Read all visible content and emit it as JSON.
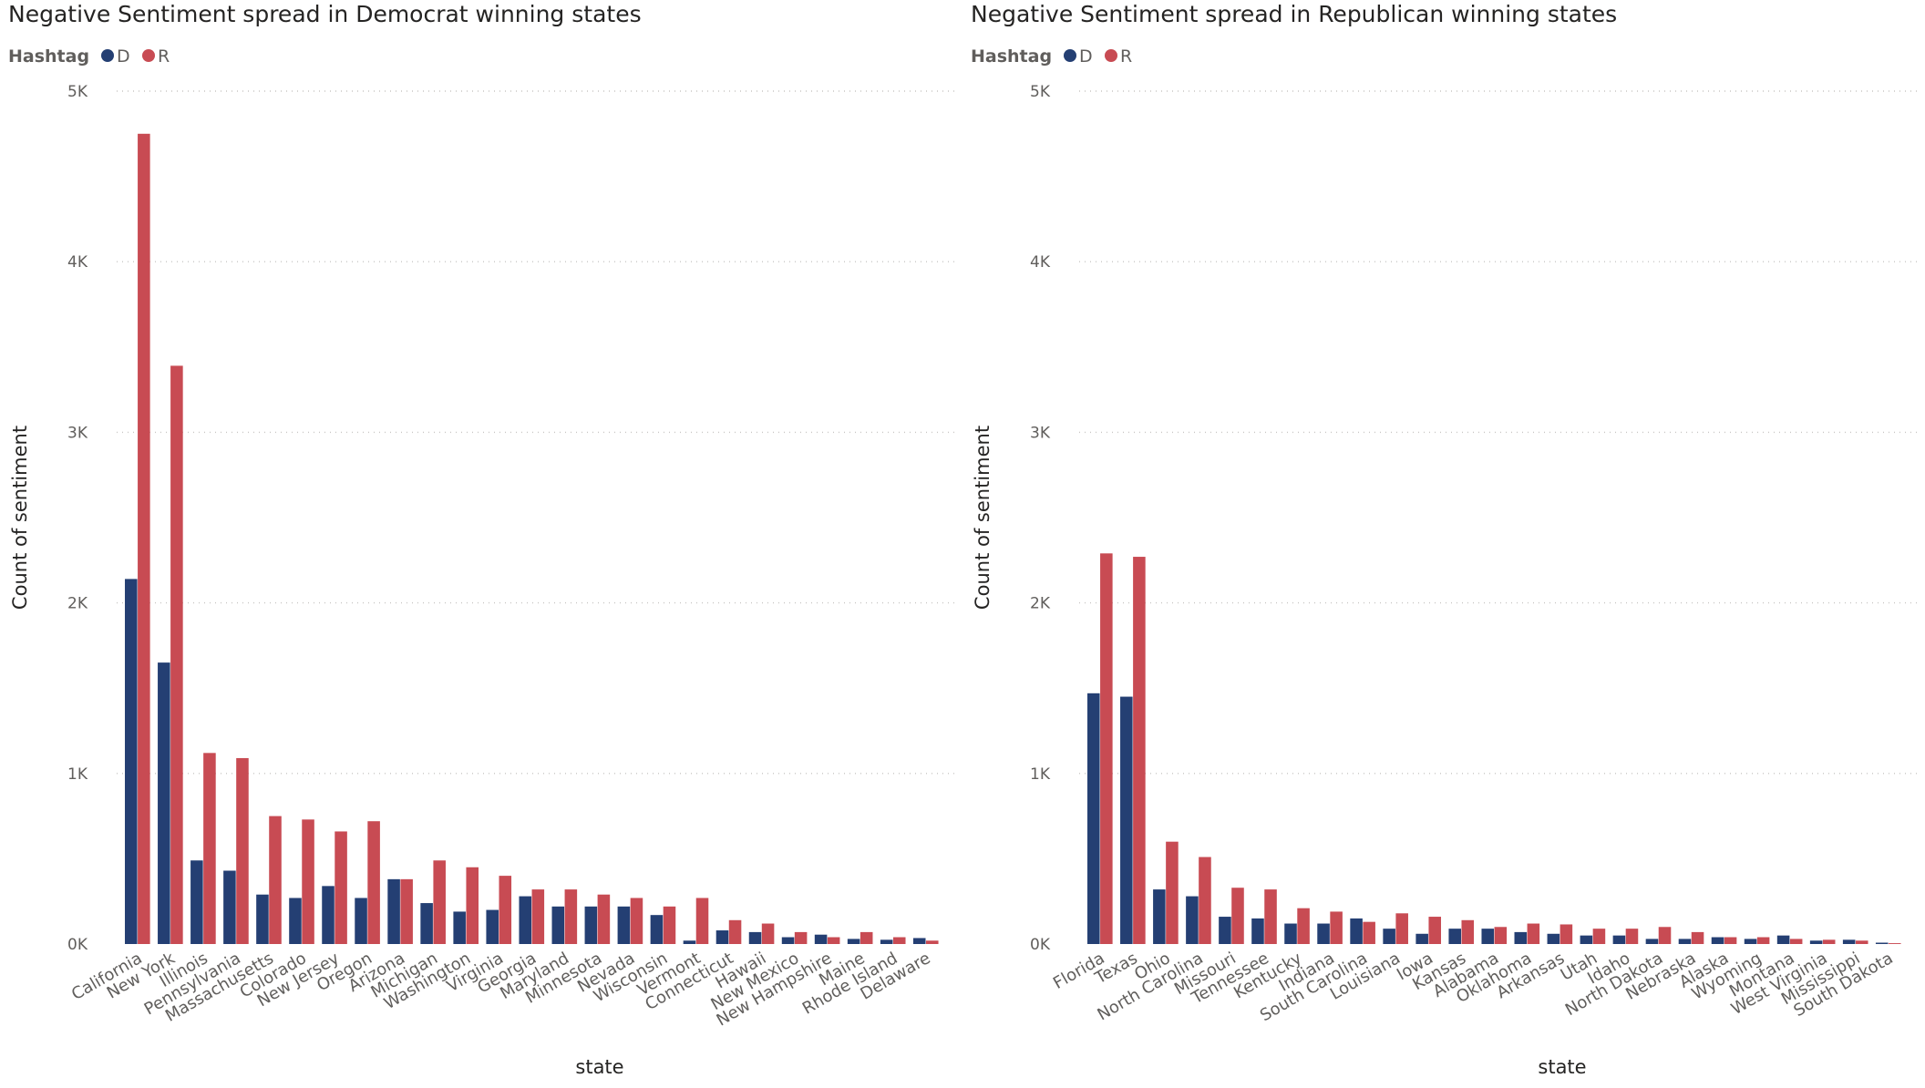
{
  "chart_data": [
    {
      "type": "bar",
      "title": "Negative Sentiment spread in Democrat winning states",
      "legend_title": "Hashtag",
      "legend_position": "top-left",
      "xlabel": "state",
      "ylabel": "Count of sentiment",
      "ylim": [
        0,
        5000
      ],
      "yticks": [
        0,
        1000,
        2000,
        3000,
        4000,
        5000
      ],
      "ytick_labels": [
        "0K",
        "1K",
        "2K",
        "3K",
        "4K",
        "5K"
      ],
      "grid": true,
      "categories": [
        "California",
        "New York",
        "Illinois",
        "Pennsylvania",
        "Massachusetts",
        "Colorado",
        "New Jersey",
        "Oregon",
        "Arizona",
        "Michigan",
        "Washington",
        "Virginia",
        "Georgia",
        "Maryland",
        "Minnesota",
        "Nevada",
        "Wisconsin",
        "Vermont",
        "Connecticut",
        "Hawaii",
        "New Mexico",
        "New Hampshire",
        "Maine",
        "Rhode Island",
        "Delaware"
      ],
      "series": [
        {
          "name": "D",
          "color": "#243f73",
          "values": [
            2140,
            1650,
            490,
            430,
            290,
            270,
            340,
            270,
            380,
            240,
            190,
            200,
            280,
            220,
            220,
            220,
            170,
            20,
            80,
            70,
            40,
            55,
            30,
            25,
            35
          ]
        },
        {
          "name": "R",
          "color": "#c84b53",
          "values": [
            4750,
            3390,
            1120,
            1090,
            750,
            730,
            660,
            720,
            380,
            490,
            450,
            400,
            320,
            320,
            290,
            270,
            220,
            270,
            140,
            120,
            70,
            40,
            70,
            40,
            20
          ]
        }
      ]
    },
    {
      "type": "bar",
      "title": "Negative Sentiment spread in Republican winning states",
      "legend_title": "Hashtag",
      "legend_position": "top-left",
      "xlabel": "state",
      "ylabel": "Count of sentiment",
      "ylim": [
        0,
        5000
      ],
      "yticks": [
        0,
        1000,
        2000,
        3000,
        4000,
        5000
      ],
      "ytick_labels": [
        "0K",
        "1K",
        "2K",
        "3K",
        "4K",
        "5K"
      ],
      "grid": true,
      "categories": [
        "Florida",
        "Texas",
        "Ohio",
        "North Carolina",
        "Missouri",
        "Tennessee",
        "Kentucky",
        "Indiana",
        "South Carolina",
        "Louisiana",
        "Iowa",
        "Kansas",
        "Alabama",
        "Oklahoma",
        "Arkansas",
        "Utah",
        "Idaho",
        "North Dakota",
        "Nebraska",
        "Alaska",
        "Wyoming",
        "Montana",
        "West Virginia",
        "Mississippi",
        "South Dakota"
      ],
      "series": [
        {
          "name": "D",
          "color": "#243f73",
          "values": [
            1470,
            1450,
            320,
            280,
            160,
            150,
            120,
            120,
            150,
            90,
            60,
            90,
            90,
            70,
            60,
            50,
            50,
            30,
            30,
            40,
            30,
            50,
            20,
            25,
            8
          ]
        },
        {
          "name": "R",
          "color": "#c84b53",
          "values": [
            2290,
            2270,
            600,
            510,
            330,
            320,
            210,
            190,
            130,
            180,
            160,
            140,
            100,
            120,
            115,
            90,
            90,
            100,
            70,
            40,
            40,
            30,
            25,
            20,
            5
          ]
        }
      ]
    }
  ]
}
